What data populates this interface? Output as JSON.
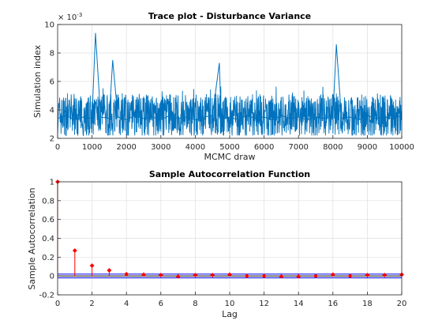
{
  "chart_data": [
    {
      "type": "line",
      "title": "Trace plot - Disturbance Variance",
      "xlabel": "MCMC draw",
      "ylabel": "Simulation index",
      "exponent_label": "× 10",
      "exponent_power": "-3",
      "xlim": [
        0,
        10000
      ],
      "ylim": [
        2,
        10
      ],
      "xticks": [
        0,
        1000,
        2000,
        3000,
        4000,
        5000,
        6000,
        7000,
        8000,
        9000,
        10000
      ],
      "yticks": [
        2,
        4,
        6,
        8,
        10
      ],
      "grid": true,
      "color": "#0072BD",
      "series": [
        {
          "x": [
            0,
            250,
            500,
            750,
            1000,
            1100,
            1250,
            1500,
            1600,
            1750,
            2000,
            2250,
            2500,
            2750,
            3000,
            3250,
            3500,
            3750,
            4000,
            4250,
            4500,
            4700,
            4750,
            5000,
            5250,
            5500,
            5750,
            6000,
            6250,
            6500,
            6750,
            7000,
            7250,
            7500,
            7750,
            8000,
            8100,
            8250,
            8500,
            8750,
            9000,
            9250,
            9500,
            9750,
            10000
          ],
          "y": [
            3.4,
            3.6,
            3.3,
            3.5,
            3.4,
            9.4,
            3.5,
            3.4,
            7.5,
            3.5,
            3.3,
            3.6,
            3.4,
            3.5,
            3.3,
            3.6,
            3.4,
            3.5,
            3.3,
            3.5,
            3.6,
            7.3,
            3.4,
            3.5,
            3.3,
            3.6,
            3.4,
            3.5,
            3.3,
            3.6,
            3.4,
            3.5,
            3.3,
            3.5,
            3.4,
            3.6,
            8.6,
            3.4,
            3.5,
            3.3,
            3.6,
            3.4,
            3.5,
            3.4,
            3.6
          ],
          "band_low": 2.4,
          "band_high": 5.0
        }
      ]
    },
    {
      "type": "stem",
      "title": "Sample Autocorrelation Function",
      "xlabel": "Lag",
      "ylabel": "Sample Autocorrelation",
      "xlim": [
        0,
        20
      ],
      "ylim": [
        -0.2,
        1
      ],
      "xticks": [
        0,
        2,
        4,
        6,
        8,
        10,
        12,
        14,
        16,
        18,
        20
      ],
      "yticks": [
        -0.2,
        0,
        0.2,
        0.4,
        0.6,
        0.8,
        1
      ],
      "grid": true,
      "stem_color": "#FF0000",
      "bound_color": "#0000FF",
      "bounds": [
        0.02,
        -0.02
      ],
      "lags": [
        0,
        1,
        2,
        3,
        4,
        5,
        6,
        7,
        8,
        9,
        10,
        11,
        12,
        13,
        14,
        15,
        16,
        17,
        18,
        19,
        20
      ],
      "values": [
        1.0,
        0.27,
        0.11,
        0.06,
        0.02,
        0.015,
        0.01,
        -0.005,
        0.01,
        0.01,
        0.015,
        0.0,
        0.0,
        -0.005,
        -0.005,
        0.0,
        0.015,
        0.0,
        0.01,
        0.01,
        0.015
      ]
    }
  ]
}
